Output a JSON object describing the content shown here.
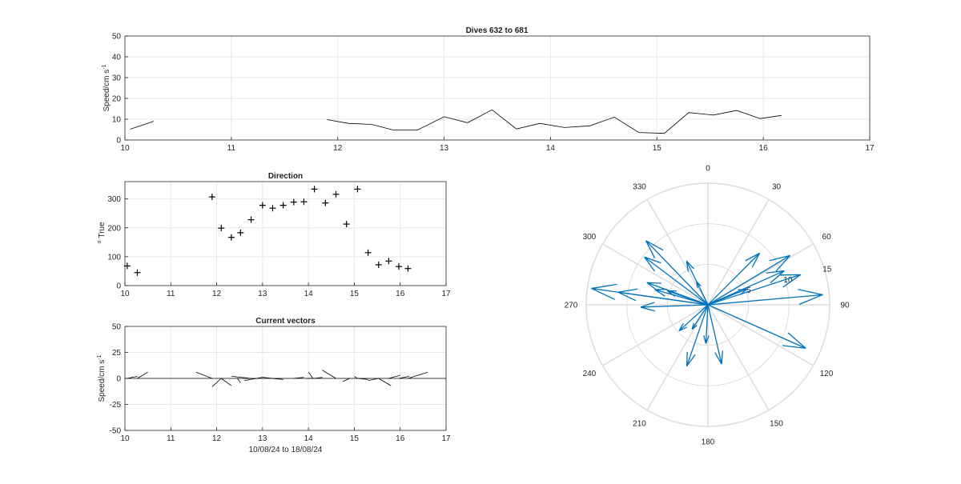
{
  "colors": {
    "axis": "#262626",
    "grid": "#e6e6e6",
    "line": "#000000",
    "compass": "#0072bd",
    "polar_grid": "#dcdcdc"
  },
  "chart_data": [
    {
      "id": "speed",
      "type": "line",
      "title": "Dives 632 to 681",
      "xlabel": "",
      "ylabel": "Speed/cm s",
      "ylabel_exp": "-1",
      "xlim": [
        10,
        17
      ],
      "ylim": [
        0,
        50
      ],
      "xticks": [
        10,
        11,
        12,
        13,
        14,
        15,
        16,
        17
      ],
      "yticks": [
        0,
        10,
        20,
        30,
        40,
        50
      ],
      "grid": true,
      "segments": [
        [
          [
            10.05,
            5.2
          ],
          [
            10.27,
            9.0
          ]
        ],
        [
          [
            11.9,
            9.8
          ],
          [
            12.1,
            8.0
          ],
          [
            12.32,
            7.5
          ],
          [
            12.52,
            4.8
          ],
          [
            12.75,
            4.8
          ],
          [
            13.0,
            11.2
          ],
          [
            13.22,
            8.3
          ],
          [
            13.45,
            14.5
          ],
          [
            13.68,
            5.3
          ],
          [
            13.9,
            8.0
          ],
          [
            14.13,
            6.0
          ],
          [
            14.37,
            6.8
          ],
          [
            14.6,
            11.0
          ],
          [
            14.83,
            3.6
          ],
          [
            15.07,
            3.2
          ],
          [
            15.3,
            13.2
          ],
          [
            15.53,
            12.0
          ],
          [
            15.75,
            14.2
          ],
          [
            15.97,
            10.3
          ],
          [
            16.17,
            11.8
          ]
        ]
      ]
    },
    {
      "id": "direction",
      "type": "scatter",
      "title": "Direction",
      "ylabel": "True",
      "ylabel_prefix": "o",
      "xlim": [
        10,
        17
      ],
      "ylim": [
        0,
        360
      ],
      "xticks": [
        10,
        11,
        12,
        13,
        14,
        15,
        16,
        17
      ],
      "yticks": [
        0,
        100,
        200,
        300
      ],
      "grid": true,
      "x": [
        10.05,
        10.27,
        11.9,
        12.1,
        12.32,
        12.52,
        12.75,
        13.0,
        13.22,
        13.45,
        13.68,
        13.9,
        14.13,
        14.37,
        14.6,
        14.83,
        15.07,
        15.3,
        15.53,
        15.75,
        15.97,
        16.17
      ],
      "y": [
        68,
        45,
        307,
        199,
        167,
        183,
        228,
        278,
        268,
        278,
        289,
        290,
        334,
        286,
        316,
        213,
        334,
        114,
        72,
        85,
        66,
        59
      ]
    },
    {
      "id": "vectors",
      "type": "line",
      "title": "Current vectors",
      "xlabel": "10/08/24 to 18/08/24",
      "ylabel": "Speed/cm s",
      "ylabel_exp": "-1",
      "xlim": [
        10,
        17
      ],
      "ylim": [
        -50,
        50
      ],
      "xticks": [
        10,
        11,
        12,
        13,
        14,
        15,
        16,
        17
      ],
      "yticks": [
        -50,
        -25,
        0,
        25,
        50
      ],
      "grid": true,
      "sticks": [
        [
          [
            10.05,
            0
          ],
          [
            10.27,
            2
          ]
        ],
        [
          [
            10.27,
            0
          ],
          [
            10.5,
            6
          ]
        ],
        [
          [
            11.55,
            6
          ],
          [
            11.9,
            0
          ]
        ],
        [
          [
            11.9,
            -8
          ],
          [
            12.1,
            0
          ]
        ],
        [
          [
            12.32,
            -7
          ],
          [
            12.1,
            0
          ]
        ],
        [
          [
            12.52,
            -4
          ],
          [
            12.45,
            0
          ]
        ],
        [
          [
            12.32,
            2
          ],
          [
            12.75,
            0
          ]
        ],
        [
          [
            12.6,
            -2
          ],
          [
            13.0,
            1
          ]
        ],
        [
          [
            13.0,
            1
          ],
          [
            13.22,
            0
          ]
        ],
        [
          [
            13.2,
            0
          ],
          [
            13.45,
            -1
          ]
        ],
        [
          [
            13.68,
            0
          ],
          [
            13.9,
            1
          ]
        ],
        [
          [
            13.95,
            0
          ],
          [
            14.13,
            0
          ]
        ],
        [
          [
            14.0,
            6
          ],
          [
            14.1,
            0
          ]
        ],
        [
          [
            14.13,
            0
          ],
          [
            14.3,
            1
          ]
        ],
        [
          [
            14.3,
            8
          ],
          [
            14.6,
            0
          ]
        ],
        [
          [
            14.75,
            -3
          ],
          [
            14.9,
            0
          ]
        ],
        [
          [
            15.0,
            2
          ],
          [
            15.07,
            0
          ]
        ],
        [
          [
            15.07,
            0
          ],
          [
            15.3,
            -1
          ]
        ],
        [
          [
            15.3,
            -2
          ],
          [
            15.53,
            0
          ]
        ],
        [
          [
            15.53,
            0
          ],
          [
            15.8,
            -7
          ]
        ],
        [
          [
            15.75,
            0
          ],
          [
            16.0,
            3
          ]
        ],
        [
          [
            15.97,
            0
          ],
          [
            16.2,
            2
          ]
        ],
        [
          [
            16.17,
            0
          ],
          [
            16.6,
            6
          ]
        ]
      ]
    },
    {
      "id": "compass",
      "type": "scatter",
      "title": "",
      "angle_labels": [
        "0",
        "30",
        "60",
        "90",
        "120",
        "150",
        "180",
        "210",
        "240",
        "270",
        "300",
        "330"
      ],
      "radial_ticks": [
        5,
        10,
        15
      ],
      "rmax": 15,
      "vectors": [
        {
          "dir": 68,
          "speed": 5.2
        },
        {
          "dir": 45,
          "speed": 9.0
        },
        {
          "dir": 307,
          "speed": 9.8
        },
        {
          "dir": 199,
          "speed": 8.0
        },
        {
          "dir": 167,
          "speed": 7.5
        },
        {
          "dir": 183,
          "speed": 4.8
        },
        {
          "dir": 228,
          "speed": 4.8
        },
        {
          "dir": 278,
          "speed": 11.2
        },
        {
          "dir": 268,
          "speed": 8.3
        },
        {
          "dir": 278,
          "speed": 14.5
        },
        {
          "dir": 289,
          "speed": 5.3
        },
        {
          "dir": 290,
          "speed": 8.0
        },
        {
          "dir": 334,
          "speed": 6.0
        },
        {
          "dir": 286,
          "speed": 6.8
        },
        {
          "dir": 316,
          "speed": 11.0
        },
        {
          "dir": 213,
          "speed": 3.6
        },
        {
          "dir": 334,
          "speed": 3.2
        },
        {
          "dir": 114,
          "speed": 13.2
        },
        {
          "dir": 72,
          "speed": 12.0
        },
        {
          "dir": 85,
          "speed": 14.2
        },
        {
          "dir": 66,
          "speed": 10.3
        },
        {
          "dir": 59,
          "speed": 11.8
        }
      ]
    }
  ]
}
